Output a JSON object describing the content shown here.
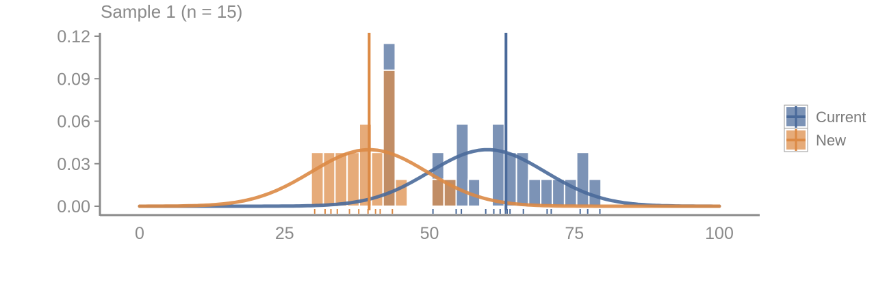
{
  "chart_data": {
    "type": "histogram",
    "title": "Sample 1 (n = 15)",
    "xlabel": "",
    "ylabel": "",
    "xlim": [
      -7,
      107
    ],
    "ylim": [
      0,
      0.12
    ],
    "xticks": [
      "0",
      "25",
      "50",
      "75",
      "100"
    ],
    "xtick_values": [
      0,
      25,
      50,
      75,
      100
    ],
    "yticks": [
      "0.00",
      "0.03",
      "0.06",
      "0.09",
      "0.12"
    ],
    "ytick_values": [
      0,
      0.03,
      0.06,
      0.09,
      0.12
    ],
    "bin_width": 2.08,
    "legend_position": "right",
    "grid": false,
    "series": [
      {
        "name": "Current",
        "color": "#4a6a9a",
        "bins": [
          {
            "x0": 42.0,
            "x1": 44.1,
            "density": 0.115
          },
          {
            "x0": 50.4,
            "x1": 52.5,
            "density": 0.038
          },
          {
            "x0": 52.5,
            "x1": 54.6,
            "density": 0.019
          },
          {
            "x0": 54.6,
            "x1": 56.7,
            "density": 0.058
          },
          {
            "x0": 56.7,
            "x1": 58.7,
            "density": 0.019
          },
          {
            "x0": 60.8,
            "x1": 62.9,
            "density": 0.058
          },
          {
            "x0": 62.9,
            "x1": 65.0,
            "density": 0.038
          },
          {
            "x0": 65.0,
            "x1": 67.1,
            "density": 0.038
          },
          {
            "x0": 67.1,
            "x1": 69.2,
            "density": 0.019
          },
          {
            "x0": 69.2,
            "x1": 71.2,
            "density": 0.019
          },
          {
            "x0": 71.2,
            "x1": 73.3,
            "density": 0.019
          },
          {
            "x0": 73.3,
            "x1": 75.4,
            "density": 0.019
          },
          {
            "x0": 75.4,
            "x1": 77.5,
            "density": 0.038
          },
          {
            "x0": 77.5,
            "x1": 79.6,
            "density": 0.019
          }
        ],
        "mean": 63.2,
        "normal_fit": {
          "mu": 60,
          "sigma": 10
        },
        "rug": [
          50.6,
          54.6,
          55.5,
          59.7,
          61.1,
          62.2,
          63.1,
          63.4,
          63.9,
          66.2,
          70.3,
          71.0,
          76.0,
          77.3,
          79.4
        ]
      },
      {
        "name": "New",
        "color": "#dc8a45",
        "bins": [
          {
            "x0": 29.6,
            "x1": 31.7,
            "density": 0.038
          },
          {
            "x0": 31.7,
            "x1": 33.7,
            "density": 0.038
          },
          {
            "x0": 33.7,
            "x1": 35.8,
            "density": 0.038
          },
          {
            "x0": 35.8,
            "x1": 37.9,
            "density": 0.038
          },
          {
            "x0": 37.9,
            "x1": 40.0,
            "density": 0.058
          },
          {
            "x0": 40.0,
            "x1": 42.0,
            "density": 0.038
          },
          {
            "x0": 42.0,
            "x1": 44.1,
            "density": 0.096
          },
          {
            "x0": 44.1,
            "x1": 46.2,
            "density": 0.019
          },
          {
            "x0": 50.4,
            "x1": 52.5,
            "density": 0.019
          },
          {
            "x0": 52.5,
            "x1": 54.6,
            "density": 0.019
          }
        ],
        "mean": 39.6,
        "normal_fit": {
          "mu": 39.6,
          "sigma": 10
        },
        "rug": [
          30.2,
          32.0,
          33.0,
          34.1,
          36.2,
          37.8,
          39.4,
          40.7,
          41.5,
          43.6
        ]
      }
    ]
  },
  "legend": {
    "items": [
      {
        "label": "Current",
        "color": "#4a6a9a"
      },
      {
        "label": "New",
        "color": "#dc8a45"
      }
    ]
  }
}
